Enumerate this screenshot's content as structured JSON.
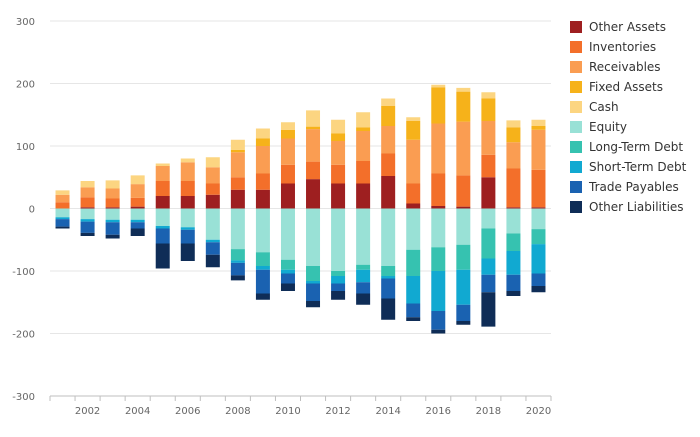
{
  "chart_data": {
    "type": "bar",
    "stacked": true,
    "x": [
      2001,
      2002,
      2003,
      2004,
      2005,
      2006,
      2007,
      2008,
      2009,
      2010,
      2011,
      2012,
      2013,
      2014,
      2015,
      2016,
      2017,
      2018,
      2019,
      2020
    ],
    "x_ticks": [
      "2002",
      "2004",
      "2006",
      "2008",
      "2010",
      "2012",
      "2014",
      "2016",
      "2018",
      "2020"
    ],
    "ylim": [
      -300,
      300
    ],
    "y_ticks": [
      "300",
      "200",
      "100",
      "0",
      "-100",
      "-200",
      "-300"
    ],
    "y_tick_values": [
      300,
      200,
      100,
      0,
      -100,
      -200,
      -300
    ],
    "grid": "horizontal",
    "legend_position": "right",
    "series": [
      {
        "name": "Other Assets",
        "color": "#9e1f20",
        "values": [
          0,
          2,
          2,
          3,
          20,
          20,
          22,
          30,
          30,
          40,
          47,
          40,
          40,
          52,
          8,
          4,
          3,
          50,
          2,
          2
        ]
      },
      {
        "name": "Inventories",
        "color": "#f36f2a",
        "values": [
          10,
          16,
          14,
          14,
          24,
          24,
          18,
          20,
          26,
          30,
          28,
          30,
          36,
          36,
          32,
          52,
          50,
          36,
          62,
          60
        ]
      },
      {
        "name": "Receivables",
        "color": "#fa9d52",
        "values": [
          12,
          16,
          16,
          22,
          24,
          30,
          26,
          40,
          44,
          42,
          52,
          38,
          48,
          44,
          70,
          80,
          86,
          54,
          42,
          64
        ]
      },
      {
        "name": "Fixed Assets",
        "color": "#f6b21a",
        "values": [
          0,
          0,
          0,
          0,
          0,
          0,
          0,
          4,
          12,
          14,
          4,
          12,
          6,
          32,
          30,
          58,
          48,
          36,
          24,
          6
        ]
      },
      {
        "name": "Cash",
        "color": "#fcd581",
        "values": [
          7,
          10,
          13,
          14,
          4,
          6,
          16,
          16,
          16,
          12,
          26,
          22,
          24,
          12,
          6,
          4,
          6,
          10,
          11,
          10
        ]
      },
      {
        "name": "Equity",
        "color": "#99e1d6",
        "values": [
          -14,
          -17,
          -18,
          -18,
          -28,
          -30,
          -50,
          -65,
          -70,
          -82,
          -92,
          -100,
          -90,
          -92,
          -66,
          -62,
          -58,
          -32,
          -40,
          -33
        ]
      },
      {
        "name": "Long-Term Debt",
        "color": "#36c2b0",
        "values": [
          0,
          0,
          0,
          0,
          0,
          0,
          0,
          -18,
          -22,
          -16,
          -24,
          -8,
          -8,
          -16,
          -42,
          -38,
          -40,
          -48,
          -28,
          -24
        ]
      },
      {
        "name": "Short-Term Debt",
        "color": "#11a9d1",
        "values": [
          -3,
          -4,
          -4,
          -4,
          -4,
          -4,
          -4,
          -4,
          -6,
          -6,
          -4,
          -12,
          -20,
          -4,
          -44,
          -64,
          -56,
          -26,
          -38,
          -47
        ]
      },
      {
        "name": "Trade Payables",
        "color": "#1a62b1",
        "values": [
          -12,
          -18,
          -20,
          -10,
          -24,
          -22,
          -20,
          -20,
          -38,
          -16,
          -28,
          -12,
          -18,
          -32,
          -22,
          -30,
          -26,
          -28,
          -26,
          -20
        ]
      },
      {
        "name": "Other Liabilities",
        "color": "#0f2d57",
        "values": [
          -3,
          -5,
          -6,
          -12,
          -40,
          -28,
          -20,
          -8,
          -10,
          -12,
          -10,
          -14,
          -18,
          -34,
          -6,
          -6,
          -6,
          -55,
          -8,
          -10
        ]
      }
    ]
  },
  "colors": {
    "grid": "#e6e6e6",
    "axis": "#bfbfbf",
    "tick_text": "#666666"
  }
}
